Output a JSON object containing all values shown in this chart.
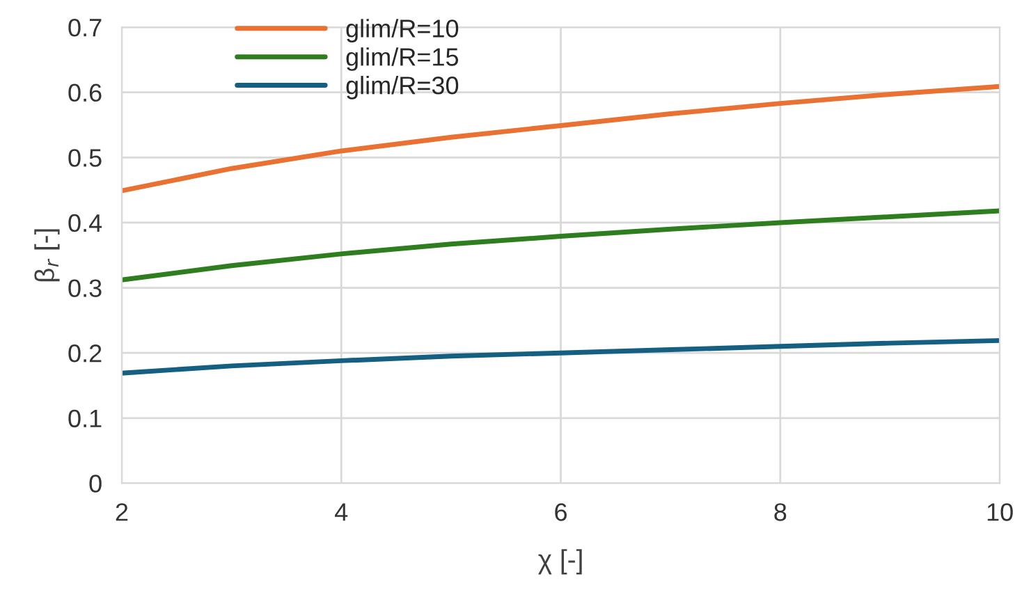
{
  "chart_data": {
    "type": "line",
    "xlabel": "χ [-]",
    "ylabel": "β$_{r}$ [-]",
    "x": [
      2,
      3,
      4,
      5,
      6,
      7,
      8,
      9,
      10
    ],
    "series": [
      {
        "name": "glim/R=10",
        "color": "#e97132",
        "values": [
          0.449,
          0.483,
          0.51,
          0.531,
          0.549,
          0.567,
          0.583,
          0.597,
          0.609
        ]
      },
      {
        "name": "glim/R=15",
        "color": "#2e7d1f",
        "values": [
          0.312,
          0.334,
          0.352,
          0.367,
          0.379,
          0.39,
          0.4,
          0.409,
          0.418
        ]
      },
      {
        "name": "glim/R=30",
        "color": "#156082",
        "values": [
          0.169,
          0.18,
          0.188,
          0.195,
          0.2,
          0.205,
          0.21,
          0.215,
          0.219
        ]
      }
    ],
    "xlim": [
      2,
      10
    ],
    "xticks": [
      2,
      4,
      6,
      8,
      10
    ],
    "ylim": [
      0,
      0.7
    ],
    "yticks": [
      0,
      0.1,
      0.2,
      0.3,
      0.4,
      0.5,
      0.6,
      0.7
    ],
    "grid": true,
    "legend": "top left",
    "marker": "none",
    "line_style": "solid"
  }
}
